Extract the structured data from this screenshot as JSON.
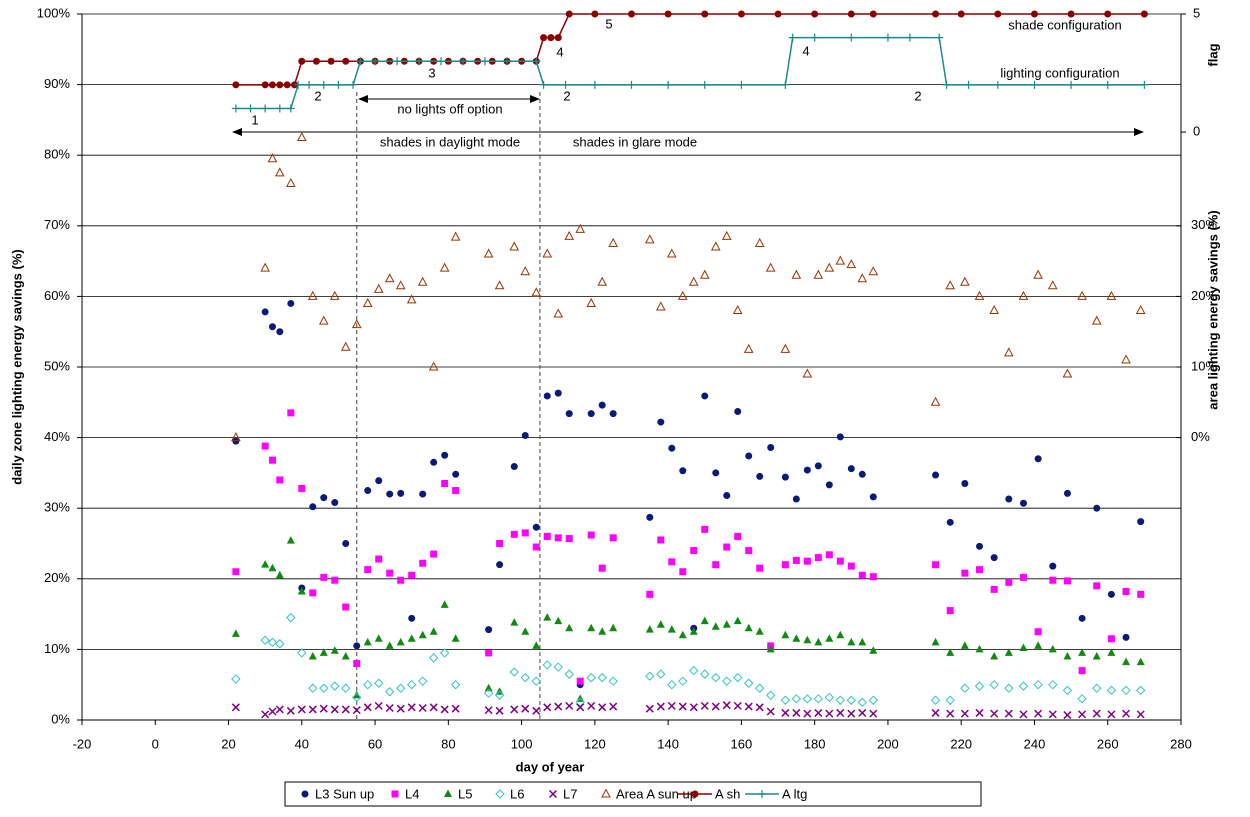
{
  "chart_data": {
    "type": "scatter",
    "xlabel": "day of year",
    "ylabel": "daily zone lighting energy savings (%)",
    "y2label": "flag",
    "y3label": "area lighting energy savings (%)",
    "xlim": [
      -20,
      280
    ],
    "xticks": [
      -20,
      0,
      20,
      40,
      60,
      80,
      100,
      120,
      140,
      160,
      180,
      200,
      220,
      240,
      260,
      280
    ],
    "ylim": [
      0,
      100
    ],
    "yticks": [
      {
        "value": 0,
        "label": "0%"
      },
      {
        "value": 10,
        "label": "10%"
      },
      {
        "value": 20,
        "label": "20%"
      },
      {
        "value": 30,
        "label": "30%"
      },
      {
        "value": 40,
        "label": "40%"
      },
      {
        "value": 50,
        "label": "50%"
      },
      {
        "value": 60,
        "label": "60%"
      },
      {
        "value": 70,
        "label": "70%"
      },
      {
        "value": 80,
        "label": "80%"
      },
      {
        "value": 90,
        "label": "90%"
      },
      {
        "value": 100,
        "label": "100%"
      }
    ],
    "y2lim": [
      -24.9,
      5
    ],
    "y2ticks": [
      0,
      5
    ],
    "y3lim": [
      -40,
      60
    ],
    "y3ticks": [
      {
        "value": 0,
        "label": "0%"
      },
      {
        "value": 10,
        "label": "10%"
      },
      {
        "value": 20,
        "label": "20%"
      },
      {
        "value": 30,
        "label": "30%"
      }
    ],
    "grid": true,
    "legend": "bottom",
    "reference_lines_x": [
      55,
      105
    ],
    "annotations": [
      "1",
      "2",
      "3",
      "4",
      "5",
      "4",
      "2",
      "2",
      "no lights off option",
      "shades in daylight mode",
      "shades in glare mode",
      "shade configuration",
      "lighting configuration"
    ],
    "series": [
      {
        "name": "L3 Sun up",
        "color": "#0a1a78",
        "marker": "circle",
        "x": [
          22,
          30,
          32,
          34,
          37,
          40,
          43,
          46,
          49,
          52,
          55,
          58,
          61,
          64,
          67,
          70,
          73,
          76,
          79,
          82,
          91,
          94,
          98,
          101,
          104,
          107,
          110,
          113,
          116,
          119,
          122,
          125,
          135,
          138,
          141,
          144,
          147,
          150,
          153,
          156,
          159,
          162,
          165,
          168,
          172,
          175,
          178,
          181,
          184,
          187,
          190,
          193,
          196,
          213,
          217,
          221,
          225,
          229,
          233,
          237,
          241,
          245,
          249,
          253,
          257,
          261,
          265,
          269
        ],
        "values": [
          39.5,
          57.8,
          55.7,
          55.0,
          59.0,
          18.7,
          30.2,
          31.5,
          30.8,
          25.0,
          10.5,
          32.5,
          33.9,
          32.0,
          32.1,
          14.4,
          32.0,
          36.5,
          37.5,
          34.8,
          12.8,
          22.0,
          35.9,
          40.3,
          27.3,
          45.9,
          46.3,
          43.4,
          5.0,
          43.4,
          44.6,
          43.4,
          28.7,
          42.2,
          38.5,
          35.3,
          13.0,
          45.9,
          35.0,
          31.8,
          43.7,
          37.4,
          34.5,
          38.6,
          34.4,
          31.3,
          35.4,
          36.0,
          33.3,
          40.1,
          35.6,
          34.8,
          31.6,
          34.7,
          28.0,
          33.5,
          24.6,
          23.0,
          31.3,
          30.7,
          37.0,
          21.8,
          32.1,
          14.4,
          30.0,
          17.8,
          11.7,
          28.1
        ]
      },
      {
        "name": "L4",
        "color": "#ff00ff",
        "marker": "square",
        "x": [
          22,
          30,
          32,
          34,
          37,
          40,
          43,
          46,
          49,
          52,
          55,
          58,
          61,
          64,
          67,
          70,
          73,
          76,
          79,
          82,
          91,
          94,
          98,
          101,
          104,
          107,
          110,
          113,
          116,
          119,
          122,
          125,
          135,
          138,
          141,
          144,
          147,
          150,
          153,
          156,
          159,
          162,
          165,
          168,
          172,
          175,
          178,
          181,
          184,
          187,
          190,
          193,
          196,
          213,
          217,
          221,
          225,
          229,
          233,
          237,
          241,
          245,
          249,
          253,
          257,
          261,
          265,
          269
        ],
        "values": [
          21.0,
          38.8,
          36.8,
          34.0,
          43.5,
          32.8,
          18.0,
          20.2,
          19.8,
          16.0,
          8.0,
          21.3,
          22.8,
          20.8,
          19.8,
          20.5,
          22.2,
          23.5,
          33.5,
          32.5,
          9.5,
          25.0,
          26.3,
          26.5,
          24.5,
          26.0,
          25.8,
          25.7,
          5.5,
          26.2,
          21.5,
          25.8,
          17.8,
          25.5,
          22.4,
          21.0,
          24.0,
          27.0,
          22.0,
          24.5,
          26.0,
          24.0,
          21.5,
          10.5,
          22.0,
          22.6,
          22.5,
          23.0,
          23.4,
          22.5,
          21.8,
          20.5,
          20.3,
          22.0,
          15.5,
          20.8,
          21.3,
          18.5,
          19.5,
          20.2,
          12.5,
          19.8,
          19.7,
          7.0,
          19.0,
          11.5,
          18.2,
          17.8
        ]
      },
      {
        "name": "L5",
        "color": "#108a10",
        "marker": "triangle",
        "x": [
          22,
          30,
          32,
          34,
          37,
          40,
          43,
          46,
          49,
          52,
          55,
          58,
          61,
          64,
          67,
          70,
          73,
          76,
          79,
          82,
          91,
          94,
          98,
          101,
          104,
          107,
          110,
          113,
          116,
          119,
          122,
          125,
          135,
          138,
          141,
          144,
          147,
          150,
          153,
          156,
          159,
          162,
          165,
          168,
          172,
          175,
          178,
          181,
          184,
          187,
          190,
          193,
          196,
          213,
          217,
          221,
          225,
          229,
          233,
          237,
          241,
          245,
          249,
          253,
          257,
          261,
          265,
          269
        ],
        "values": [
          12.2,
          22.0,
          21.5,
          20.5,
          25.4,
          18.2,
          9.0,
          9.5,
          9.8,
          9.0,
          3.5,
          11.0,
          11.5,
          10.5,
          11.0,
          11.5,
          12.0,
          12.5,
          16.3,
          11.5,
          4.5,
          4.0,
          13.8,
          12.5,
          10.5,
          14.5,
          14.0,
          13.0,
          3.0,
          13.0,
          12.5,
          13.0,
          12.8,
          13.5,
          12.8,
          12.0,
          12.5,
          14.0,
          13.2,
          13.5,
          14.0,
          13.0,
          12.5,
          10.0,
          12.0,
          11.5,
          11.3,
          11.0,
          11.5,
          12.0,
          11.0,
          11.0,
          9.8,
          11.0,
          9.5,
          10.5,
          10.0,
          9.0,
          9.5,
          10.2,
          10.5,
          10.0,
          9.0,
          9.5,
          9.0,
          9.5,
          8.2,
          8.2
        ]
      },
      {
        "name": "L6",
        "color": "#33c4c4",
        "marker": "diamond-open",
        "x": [
          22,
          30,
          32,
          34,
          37,
          40,
          43,
          46,
          49,
          52,
          55,
          58,
          61,
          64,
          67,
          70,
          73,
          76,
          79,
          82,
          91,
          94,
          98,
          101,
          104,
          107,
          110,
          113,
          116,
          119,
          122,
          125,
          135,
          138,
          141,
          144,
          147,
          150,
          153,
          156,
          159,
          162,
          165,
          168,
          172,
          175,
          178,
          181,
          184,
          187,
          190,
          193,
          196,
          213,
          217,
          221,
          225,
          229,
          233,
          237,
          241,
          245,
          249,
          253,
          257,
          261,
          265,
          269
        ],
        "values": [
          5.8,
          11.3,
          11.0,
          10.8,
          14.5,
          9.5,
          4.5,
          4.5,
          4.8,
          4.5,
          3.2,
          5.0,
          5.2,
          4.0,
          4.5,
          5.0,
          5.5,
          8.8,
          9.5,
          5.0,
          3.8,
          3.5,
          6.8,
          6.0,
          5.5,
          7.8,
          7.5,
          6.5,
          2.5,
          6.0,
          6.0,
          5.5,
          6.2,
          6.5,
          5.0,
          5.5,
          7.0,
          6.5,
          6.0,
          5.5,
          6.0,
          5.2,
          4.5,
          3.5,
          2.8,
          3.0,
          3.0,
          3.0,
          3.2,
          2.8,
          2.8,
          2.5,
          2.8,
          2.8,
          2.8,
          4.5,
          4.8,
          5.0,
          4.5,
          4.8,
          5.0,
          5.0,
          4.2,
          3.0,
          4.5,
          4.2,
          4.2,
          4.2
        ]
      },
      {
        "name": "L7",
        "color": "#800080",
        "marker": "x",
        "x": [
          22,
          30,
          32,
          34,
          37,
          40,
          43,
          46,
          49,
          52,
          55,
          58,
          61,
          64,
          67,
          70,
          73,
          76,
          79,
          82,
          91,
          94,
          98,
          101,
          104,
          107,
          110,
          113,
          116,
          119,
          122,
          125,
          135,
          138,
          141,
          144,
          147,
          150,
          153,
          156,
          159,
          162,
          165,
          168,
          172,
          175,
          178,
          181,
          184,
          187,
          190,
          193,
          196,
          213,
          217,
          221,
          225,
          229,
          233,
          237,
          241,
          245,
          249,
          253,
          257,
          261,
          265,
          269
        ],
        "values": [
          1.8,
          0.8,
          1.2,
          1.5,
          1.3,
          1.5,
          1.5,
          1.6,
          1.5,
          1.5,
          1.4,
          1.8,
          2.0,
          1.7,
          1.6,
          1.8,
          1.7,
          1.8,
          1.5,
          1.6,
          1.4,
          1.3,
          1.5,
          1.6,
          1.3,
          1.8,
          1.9,
          2.0,
          1.8,
          2.0,
          1.8,
          1.9,
          1.6,
          1.9,
          2.0,
          1.9,
          1.8,
          2.0,
          1.9,
          2.1,
          2.0,
          1.9,
          1.8,
          1.2,
          1.0,
          1.0,
          0.9,
          1.0,
          0.9,
          1.0,
          0.9,
          1.0,
          0.9,
          1.0,
          0.9,
          0.9,
          1.0,
          0.9,
          0.9,
          0.8,
          0.9,
          0.8,
          0.7,
          0.8,
          0.9,
          0.8,
          0.9,
          0.8
        ]
      },
      {
        "name": "Area A sun up",
        "color": "#993300",
        "marker": "triangle-open",
        "axis": "y3",
        "x": [
          22,
          30,
          32,
          34,
          37,
          40,
          43,
          46,
          49,
          52,
          55,
          58,
          61,
          64,
          67,
          70,
          73,
          76,
          79,
          82,
          91,
          94,
          98,
          101,
          104,
          107,
          110,
          113,
          116,
          119,
          122,
          125,
          135,
          138,
          141,
          144,
          147,
          150,
          153,
          156,
          159,
          162,
          165,
          168,
          172,
          175,
          178,
          181,
          184,
          187,
          190,
          193,
          196,
          213,
          217,
          221,
          225,
          229,
          233,
          237,
          241,
          245,
          249,
          253,
          257,
          261,
          265,
          269
        ],
        "values": [
          0,
          24,
          39.5,
          37.5,
          36,
          42.5,
          20,
          16.5,
          20,
          12.8,
          16,
          19,
          21,
          22.5,
          21.5,
          19.5,
          22,
          10,
          24,
          28.4,
          26,
          21.5,
          27,
          23.5,
          20.5,
          26,
          17.5,
          28.5,
          29.5,
          19,
          22,
          27.5,
          28,
          18.5,
          26,
          20,
          22,
          23,
          27,
          28.5,
          18,
          12.5,
          27.5,
          24,
          12.5,
          23,
          9,
          23,
          24,
          25,
          24.5,
          22.5,
          23.5,
          5,
          21.5,
          22,
          20,
          18,
          12,
          20,
          23,
          21.5,
          9,
          20,
          16.5,
          20,
          11,
          18
        ]
      },
      {
        "name": "A sh",
        "color": "#8b0000",
        "marker": "circle",
        "line": true,
        "axis": "y2",
        "x": [
          22,
          30,
          32,
          34,
          36,
          38,
          40,
          44,
          48,
          52,
          56,
          60,
          64,
          68,
          72,
          76,
          80,
          84,
          88,
          92,
          96,
          100,
          104,
          106,
          108,
          110,
          113,
          120,
          130,
          140,
          150,
          160,
          170,
          180,
          190,
          196,
          213,
          220,
          230,
          240,
          250,
          260,
          270
        ],
        "values": [
          2,
          2,
          2,
          2,
          2,
          2,
          3,
          3,
          3,
          3,
          3,
          3,
          3,
          3,
          3,
          3,
          3,
          3,
          3,
          3,
          3,
          3,
          3,
          4,
          4,
          4,
          5,
          5,
          5,
          5,
          5,
          5,
          5,
          5,
          5,
          5,
          5,
          5,
          5,
          5,
          5,
          5,
          5
        ]
      },
      {
        "name": "A ltg",
        "color": "#1a8a8a",
        "marker": "plus",
        "line": true,
        "axis": "y2",
        "x": [
          22,
          26,
          30,
          34,
          37,
          39,
          42,
          46,
          50,
          54,
          56,
          60,
          66,
          72,
          78,
          84,
          90,
          96,
          104,
          106,
          112,
          120,
          130,
          140,
          150,
          160,
          172,
          174,
          180,
          190,
          200,
          206,
          214,
          216,
          222,
          230,
          240,
          250,
          260,
          270
        ],
        "values": [
          1,
          1,
          1,
          1,
          1,
          2,
          2,
          2,
          2,
          2,
          3,
          3,
          3,
          3,
          3,
          3,
          3,
          3,
          3,
          2,
          2,
          2,
          2,
          2,
          2,
          2,
          2,
          4,
          4,
          4,
          4,
          4,
          4,
          2,
          2,
          2,
          2,
          2,
          2,
          2
        ]
      }
    ]
  }
}
